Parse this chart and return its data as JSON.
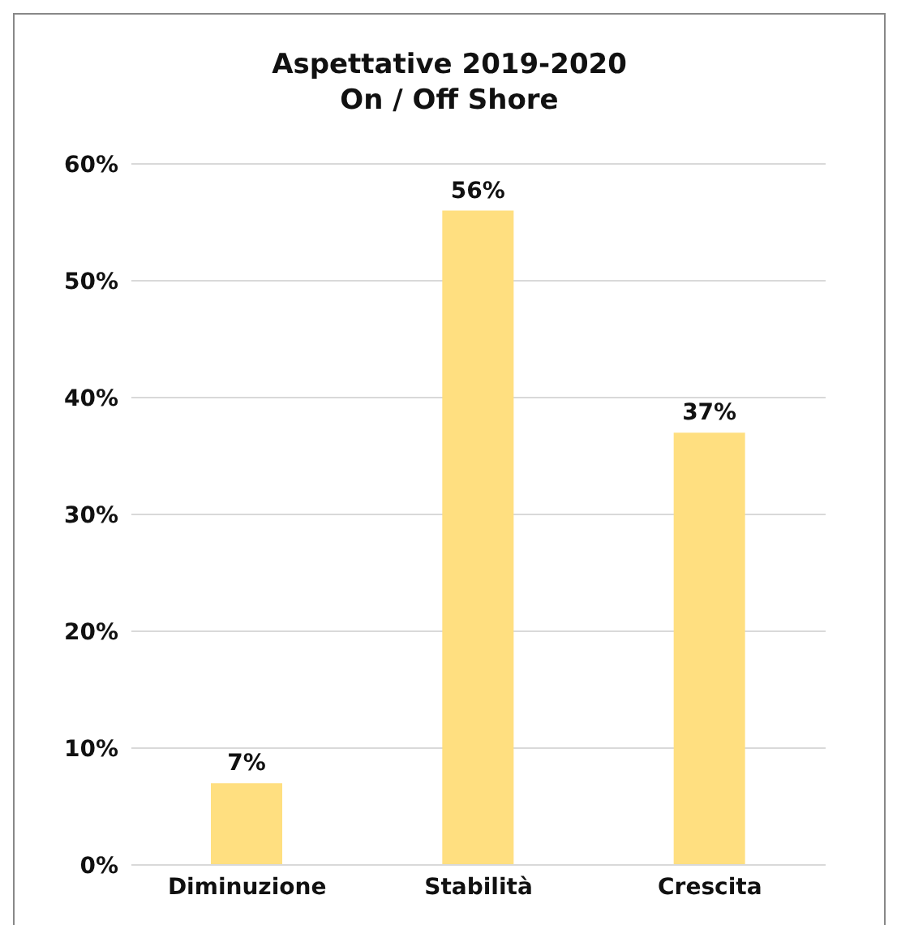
{
  "chart_data": {
    "type": "bar",
    "title": "Aspettative 2019-2020",
    "subtitle": "On / Off Shore",
    "categories": [
      "Diminuzione",
      "Stabilità",
      "Crescita"
    ],
    "values": [
      7,
      56,
      37
    ],
    "value_labels": [
      "7%",
      "56%",
      "37%"
    ],
    "color": "#ffdf80",
    "ylim": [
      0,
      60
    ],
    "yticks": [
      {
        "value": 0,
        "label": "0%"
      },
      {
        "value": 10,
        "label": "10%"
      },
      {
        "value": 20,
        "label": "20%"
      },
      {
        "value": 30,
        "label": "30%"
      },
      {
        "value": 40,
        "label": "40%"
      },
      {
        "value": 50,
        "label": "50%"
      },
      {
        "value": 60,
        "label": "60%"
      }
    ],
    "grid": "y",
    "legend": false
  }
}
